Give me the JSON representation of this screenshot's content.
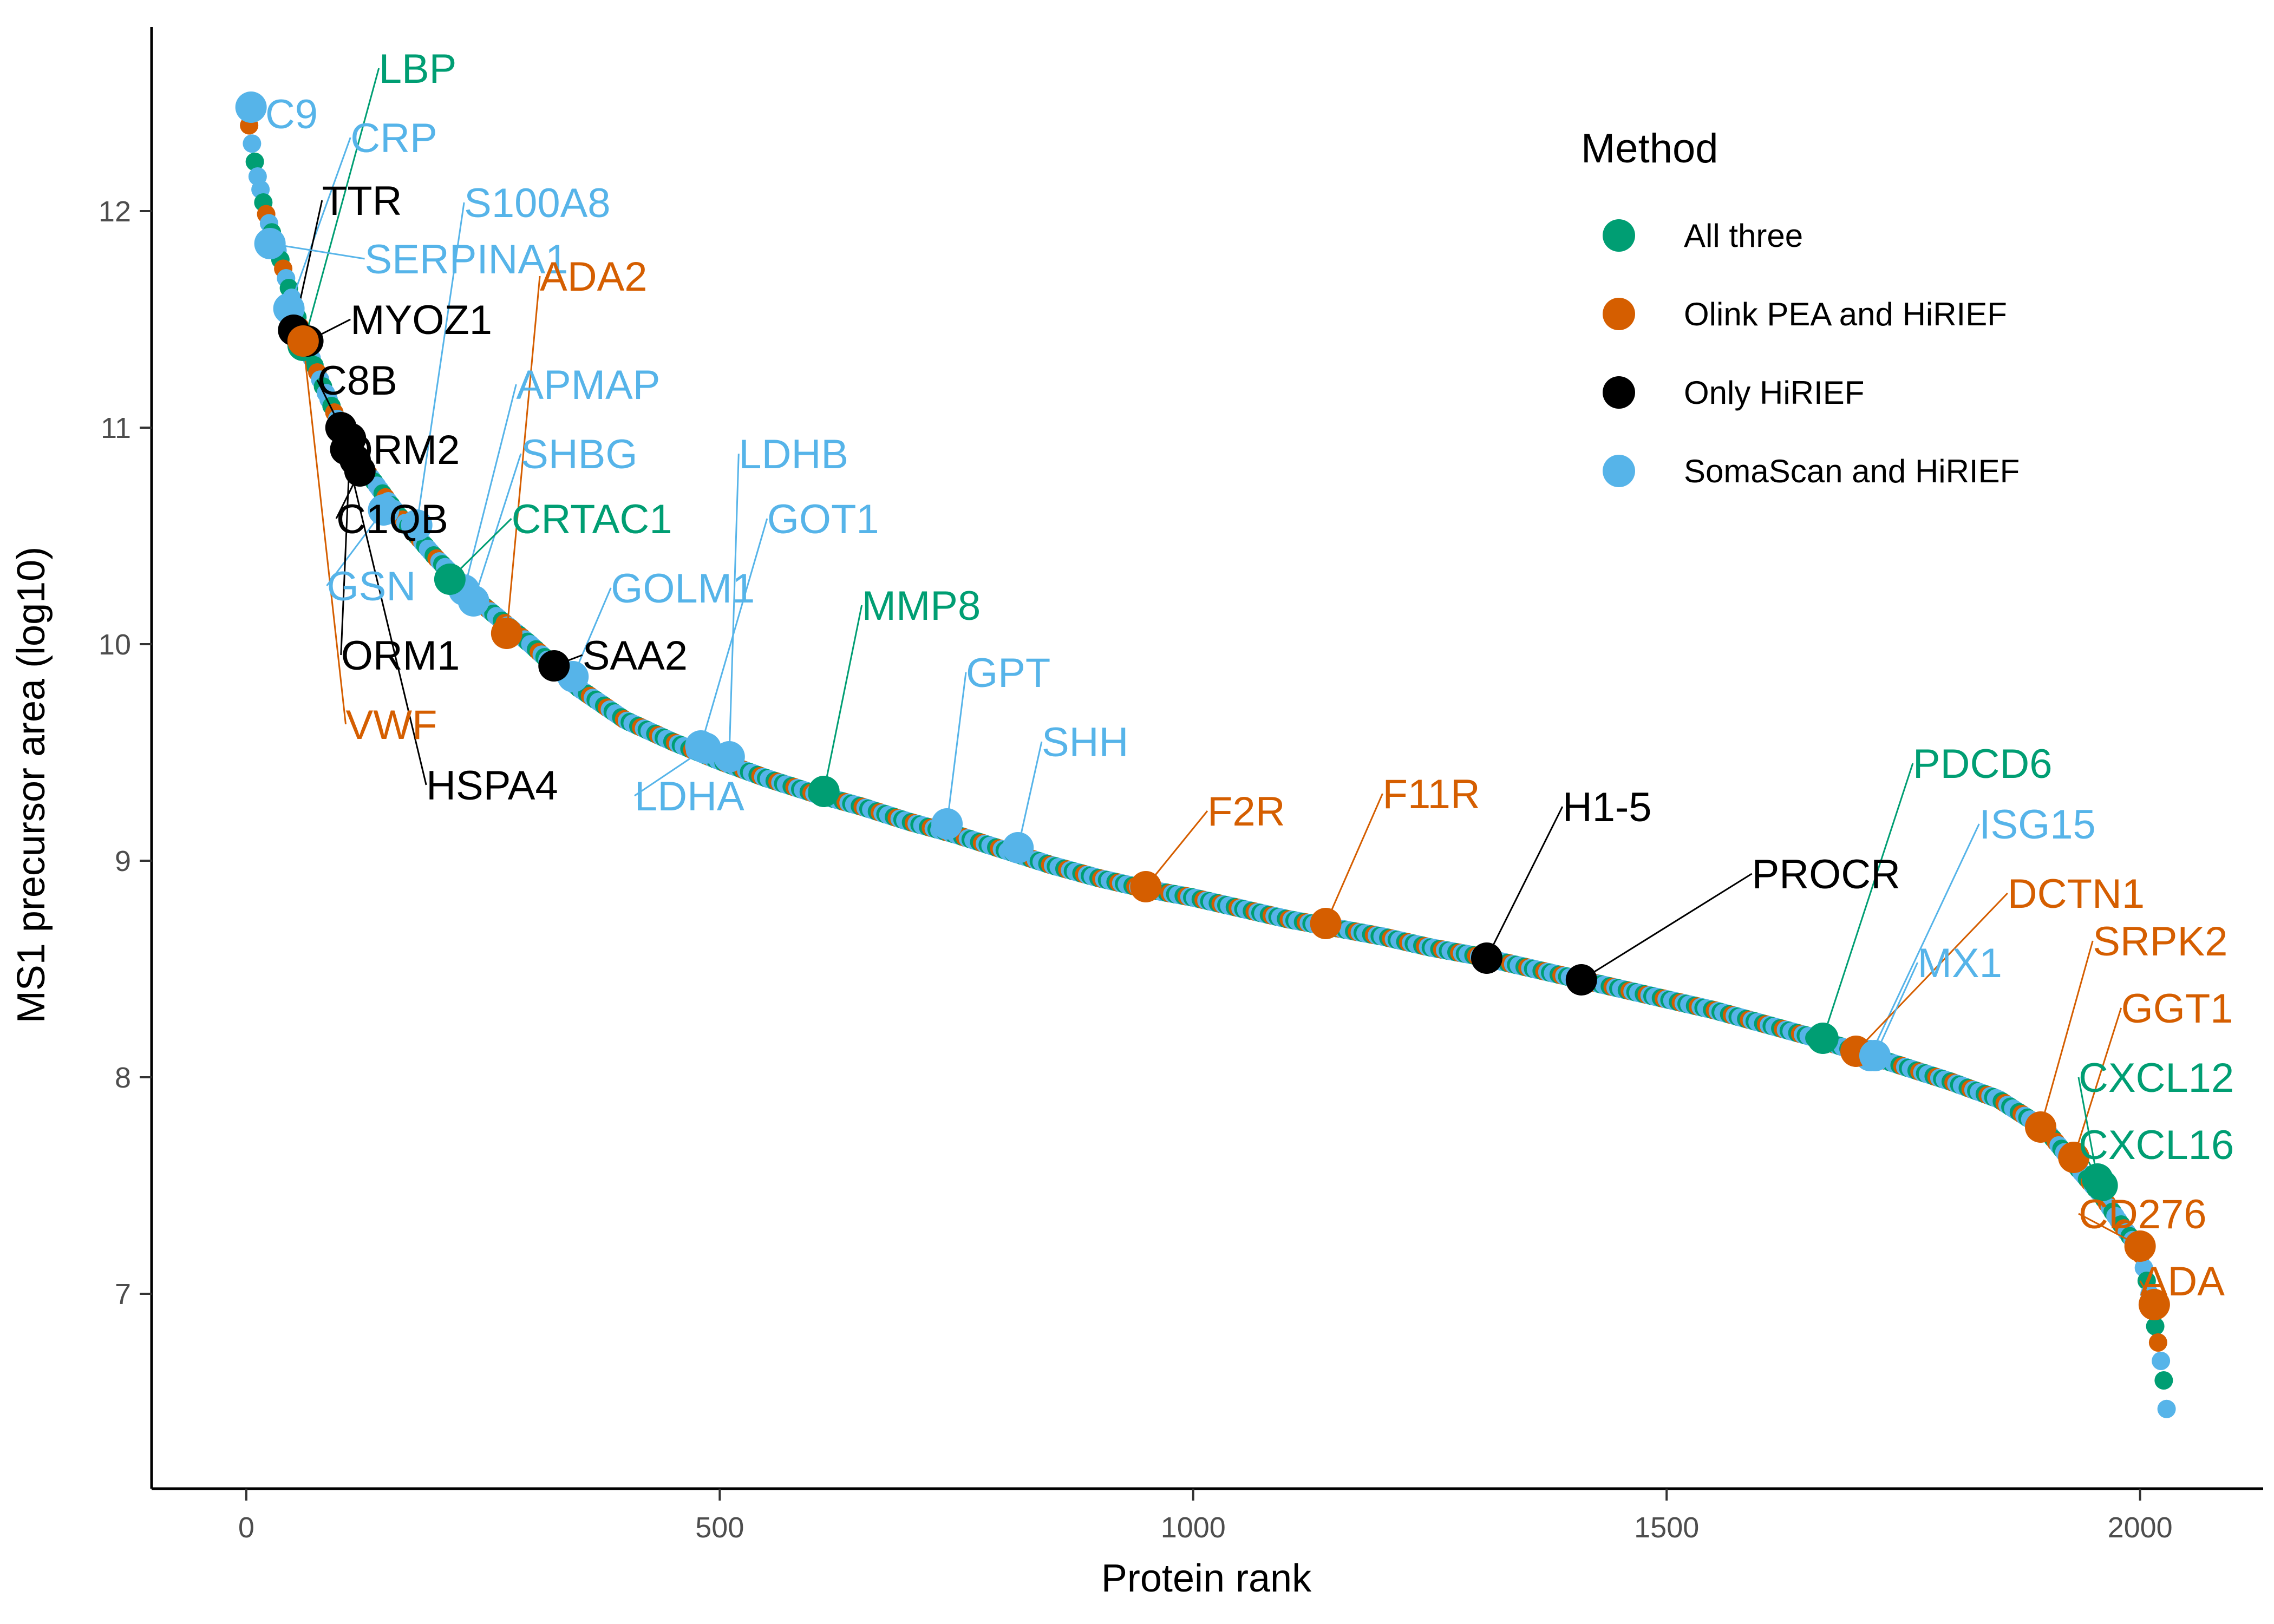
{
  "chart_data": {
    "type": "scatter",
    "title": "",
    "xlabel": "Protein rank",
    "ylabel": "MS1 precursor area (log10)",
    "xlim": [
      -100,
      2130
    ],
    "ylim": [
      6.1,
      12.85
    ],
    "x_ticks": [
      0,
      500,
      1000,
      1500,
      2000
    ],
    "y_ticks": [
      7,
      8,
      9,
      10,
      11,
      12
    ],
    "x_tick_labels": [
      "0",
      "500",
      "1000",
      "1500",
      "2000"
    ],
    "y_tick_labels": [
      "7",
      "8",
      "9",
      "10",
      "11",
      "12"
    ],
    "grid": false,
    "legend": {
      "title": "Method",
      "placement": "top-right",
      "entries": [
        {
          "label": "All three",
          "color": "#009E73"
        },
        {
          "label": "Olink PEA and HiRIEF",
          "color": "#D55E00"
        },
        {
          "label": "Only HiRIEF",
          "color": "#000000"
        },
        {
          "label": "SomaScan and HiRIEF",
          "color": "#56B4E9"
        }
      ]
    },
    "curve": [
      [
        0,
        12.48
      ],
      [
        10,
        12.2
      ],
      [
        20,
        12.0
      ],
      [
        40,
        11.72
      ],
      [
        60,
        11.42
      ],
      [
        80,
        11.2
      ],
      [
        100,
        11.0
      ],
      [
        130,
        10.78
      ],
      [
        160,
        10.6
      ],
      [
        200,
        10.4
      ],
      [
        250,
        10.18
      ],
      [
        300,
        10.0
      ],
      [
        350,
        9.8
      ],
      [
        400,
        9.65
      ],
      [
        450,
        9.55
      ],
      [
        500,
        9.46
      ],
      [
        550,
        9.38
      ],
      [
        600,
        9.31
      ],
      [
        650,
        9.25
      ],
      [
        700,
        9.18
      ],
      [
        750,
        9.12
      ],
      [
        800,
        9.05
      ],
      [
        850,
        8.98
      ],
      [
        900,
        8.92
      ],
      [
        950,
        8.87
      ],
      [
        1000,
        8.83
      ],
      [
        1050,
        8.78
      ],
      [
        1100,
        8.73
      ],
      [
        1150,
        8.69
      ],
      [
        1200,
        8.65
      ],
      [
        1250,
        8.6
      ],
      [
        1300,
        8.56
      ],
      [
        1350,
        8.51
      ],
      [
        1400,
        8.46
      ],
      [
        1450,
        8.41
      ],
      [
        1500,
        8.36
      ],
      [
        1550,
        8.31
      ],
      [
        1600,
        8.25
      ],
      [
        1650,
        8.19
      ],
      [
        1700,
        8.12
      ],
      [
        1750,
        8.05
      ],
      [
        1800,
        7.98
      ],
      [
        1850,
        7.9
      ],
      [
        1900,
        7.76
      ],
      [
        1930,
        7.6
      ],
      [
        1960,
        7.45
      ],
      [
        1980,
        7.32
      ],
      [
        2000,
        7.2
      ],
      [
        2010,
        7.0
      ],
      [
        2020,
        6.75
      ],
      [
        2025,
        6.6
      ],
      [
        2030,
        6.38
      ]
    ],
    "curve_palette": [
      "#009E73",
      "#D55E00",
      "#56B4E9",
      "#009E73",
      "#56B4E9",
      "#56B4E9"
    ],
    "highlighted": [
      {
        "label": "C9",
        "method": "SomaScan and HiRIEF",
        "x": 5,
        "y": 12.48,
        "label_x": 20,
        "label_y": 12.45
      },
      {
        "label": "LBP",
        "method": "All three",
        "x": 60,
        "y": 11.38,
        "label_x": 140,
        "label_y": 12.66
      },
      {
        "label": "CRP",
        "method": "SomaScan and HiRIEF",
        "x": 45,
        "y": 11.55,
        "label_x": 110,
        "label_y": 12.34
      },
      {
        "label": "TTR",
        "method": "Only HiRIEF",
        "x": 50,
        "y": 11.45,
        "label_x": 80,
        "label_y": 12.05
      },
      {
        "label": "S100A8",
        "method": "SomaScan and HiRIEF",
        "x": 180,
        "y": 10.55,
        "label_x": 230,
        "label_y": 12.04
      },
      {
        "label": "SERPINA1",
        "method": "SomaScan and HiRIEF",
        "x": 25,
        "y": 11.85,
        "label_x": 125,
        "label_y": 11.78
      },
      {
        "label": "ADA2",
        "method": "Olink PEA and HiRIEF",
        "x": 275,
        "y": 10.05,
        "label_x": 310,
        "label_y": 11.7
      },
      {
        "label": "MYOZ1",
        "method": "Only HiRIEF",
        "x": 65,
        "y": 11.4,
        "label_x": 110,
        "label_y": 11.5
      },
      {
        "label": "C8B",
        "method": "Only HiRIEF",
        "x": 100,
        "y": 11.0,
        "label_x": 75,
        "label_y": 11.22
      },
      {
        "label": "APMAP",
        "method": "SomaScan and HiRIEF",
        "x": 230,
        "y": 10.25,
        "label_x": 285,
        "label_y": 11.2
      },
      {
        "label": "ORM2",
        "method": "Only HiRIEF",
        "x": 115,
        "y": 10.85,
        "label_x": 100,
        "label_y": 10.9
      },
      {
        "label": "SHBG",
        "method": "SomaScan and HiRIEF",
        "x": 240,
        "y": 10.2,
        "label_x": 290,
        "label_y": 10.88
      },
      {
        "label": "LDHB",
        "method": "SomaScan and HiRIEF",
        "x": 510,
        "y": 9.48,
        "label_x": 520,
        "label_y": 10.88
      },
      {
        "label": "C1QB",
        "method": "Only HiRIEF",
        "x": 120,
        "y": 10.8,
        "label_x": 95,
        "label_y": 10.58
      },
      {
        "label": "CRTAC1",
        "method": "All three",
        "x": 215,
        "y": 10.3,
        "label_x": 280,
        "label_y": 10.58
      },
      {
        "label": "GOT1",
        "method": "SomaScan and HiRIEF",
        "x": 480,
        "y": 9.53,
        "label_x": 550,
        "label_y": 10.58
      },
      {
        "label": "GSN",
        "method": "SomaScan and HiRIEF",
        "x": 145,
        "y": 10.62,
        "label_x": 85,
        "label_y": 10.27
      },
      {
        "label": "GOLM1",
        "method": "SomaScan and HiRIEF",
        "x": 345,
        "y": 9.85,
        "label_x": 385,
        "label_y": 10.26
      },
      {
        "label": "MMP8",
        "method": "All three",
        "x": 610,
        "y": 9.32,
        "label_x": 650,
        "label_y": 10.18
      },
      {
        "label": "ORM1",
        "method": "Only HiRIEF",
        "x": 110,
        "y": 10.95,
        "label_x": 100,
        "label_y": 9.95
      },
      {
        "label": "SAA2",
        "method": "Only HiRIEF",
        "x": 325,
        "y": 9.9,
        "label_x": 355,
        "label_y": 9.95
      },
      {
        "label": "GPT",
        "method": "SomaScan and HiRIEF",
        "x": 740,
        "y": 9.17,
        "label_x": 760,
        "label_y": 9.87
      },
      {
        "label": "VWF",
        "method": "Olink PEA and HiRIEF",
        "x": 60,
        "y": 11.4,
        "label_x": 105,
        "label_y": 9.63
      },
      {
        "label": "SHH",
        "method": "SomaScan and HiRIEF",
        "x": 815,
        "y": 9.06,
        "label_x": 840,
        "label_y": 9.55
      },
      {
        "label": "HSPA4",
        "method": "Only HiRIEF",
        "x": 105,
        "y": 10.9,
        "label_x": 190,
        "label_y": 9.35
      },
      {
        "label": "LDHA",
        "method": "SomaScan and HiRIEF",
        "x": 485,
        "y": 9.52,
        "label_x": 410,
        "label_y": 9.3
      },
      {
        "label": "F2R",
        "method": "Olink PEA and HiRIEF",
        "x": 950,
        "y": 8.88,
        "label_x": 1015,
        "label_y": 9.23
      },
      {
        "label": "F11R",
        "method": "Olink PEA and HiRIEF",
        "x": 1140,
        "y": 8.71,
        "label_x": 1200,
        "label_y": 9.31
      },
      {
        "label": "H1-5",
        "method": "Only HiRIEF",
        "x": 1310,
        "y": 8.55,
        "label_x": 1390,
        "label_y": 9.25
      },
      {
        "label": "PROCR",
        "method": "Only HiRIEF",
        "x": 1410,
        "y": 8.45,
        "label_x": 1590,
        "label_y": 8.94
      },
      {
        "label": "PDCD6",
        "method": "All three",
        "x": 1665,
        "y": 8.18,
        "label_x": 1760,
        "label_y": 9.45
      },
      {
        "label": "ISG15",
        "method": "SomaScan and HiRIEF",
        "x": 1715,
        "y": 8.1,
        "label_x": 1830,
        "label_y": 9.17
      },
      {
        "label": "DCTN1",
        "method": "Olink PEA and HiRIEF",
        "x": 1700,
        "y": 8.12,
        "label_x": 1860,
        "label_y": 8.85
      },
      {
        "label": "MX1",
        "method": "SomaScan and HiRIEF",
        "x": 1720,
        "y": 8.1,
        "label_x": 1765,
        "label_y": 8.53
      },
      {
        "label": "SRPK2",
        "method": "Olink PEA and HiRIEF",
        "x": 1895,
        "y": 7.77,
        "label_x": 1950,
        "label_y": 8.63
      },
      {
        "label": "GGT1",
        "method": "Olink PEA and HiRIEF",
        "x": 1930,
        "y": 7.63,
        "label_x": 1980,
        "label_y": 8.32
      },
      {
        "label": "CXCL12",
        "method": "All three",
        "x": 1955,
        "y": 7.53,
        "label_x": 1935,
        "label_y": 8.0
      },
      {
        "label": "CXCL16",
        "method": "All three",
        "x": 1960,
        "y": 7.5,
        "label_x": 1935,
        "label_y": 7.69
      },
      {
        "label": "CD276",
        "method": "Olink PEA and HiRIEF",
        "x": 2000,
        "y": 7.22,
        "label_x": 1935,
        "label_y": 7.37
      },
      {
        "label": "ADA",
        "method": "Olink PEA and HiRIEF",
        "x": 2015,
        "y": 6.95,
        "label_x": 2000,
        "label_y": 7.06
      }
    ]
  }
}
